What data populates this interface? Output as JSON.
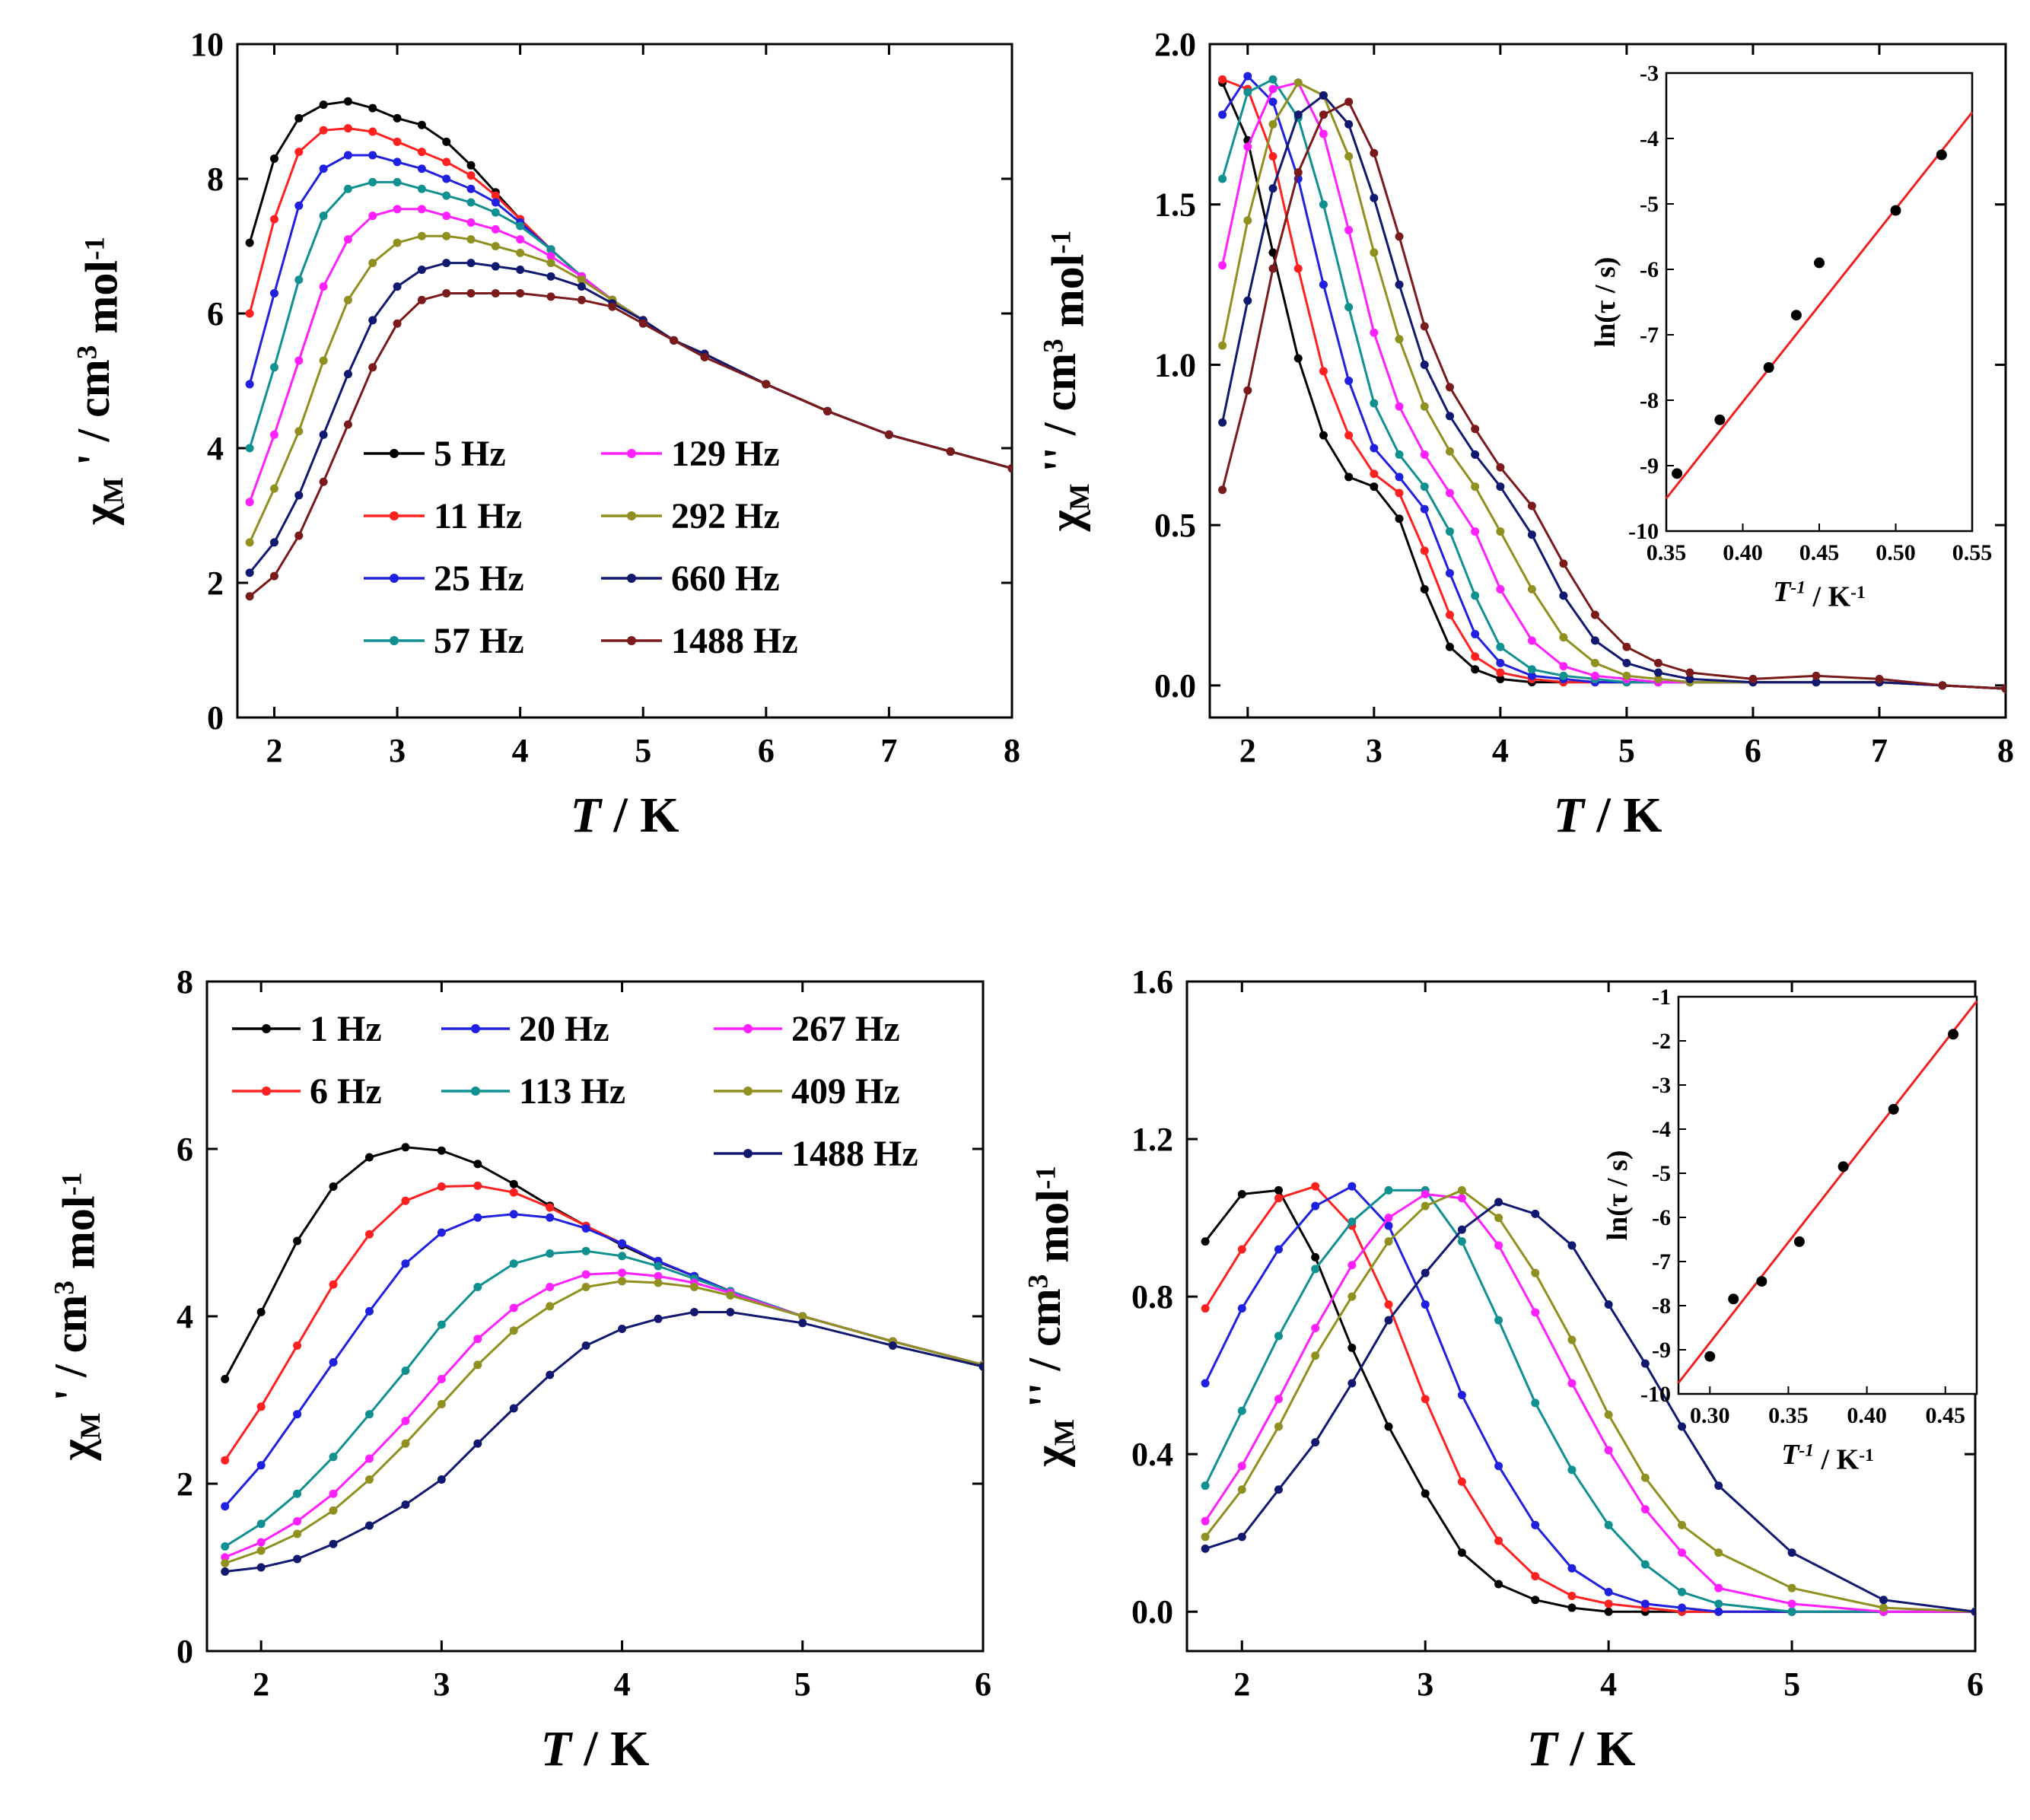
{
  "chart_data": [
    {
      "id": "a",
      "type": "line",
      "xlabel": "T / K",
      "ylabel": "χM' / cm3 mol-1",
      "xlim": [
        1.7,
        8
      ],
      "ylim": [
        0,
        10
      ],
      "xticks": [
        2,
        3,
        4,
        5,
        6,
        7,
        8
      ],
      "yticks": [
        0,
        2,
        4,
        6,
        8,
        10
      ],
      "legend_location": "center",
      "x": [
        1.8,
        2.0,
        2.2,
        2.4,
        2.6,
        2.8,
        3.0,
        3.2,
        3.4,
        3.6,
        3.8,
        4.0,
        4.25,
        4.5,
        4.75,
        5.0,
        5.25,
        5.5,
        6.0,
        6.5,
        7.0,
        7.5,
        8.0
      ],
      "series": [
        {
          "name": "5 Hz",
          "color": "#000000",
          "values": [
            7.05,
            8.3,
            8.9,
            9.1,
            9.15,
            9.05,
            8.9,
            8.8,
            8.55,
            8.2,
            7.8,
            7.4,
            6.95,
            6.55,
            6.2,
            5.9,
            5.6,
            5.4,
            4.95,
            4.55,
            4.2,
            3.95,
            3.7
          ]
        },
        {
          "name": "11 Hz",
          "color": "#ff2020",
          "values": [
            6.0,
            7.4,
            8.4,
            8.72,
            8.75,
            8.7,
            8.55,
            8.4,
            8.25,
            8.05,
            7.75,
            7.4,
            6.95,
            6.55,
            6.2,
            5.9,
            5.6,
            5.4,
            4.95,
            4.55,
            4.2,
            3.95,
            3.7
          ]
        },
        {
          "name": "25 Hz",
          "color": "#2020e0",
          "values": [
            4.95,
            6.3,
            7.6,
            8.15,
            8.35,
            8.35,
            8.25,
            8.15,
            8.0,
            7.85,
            7.65,
            7.35,
            6.95,
            6.55,
            6.2,
            5.9,
            5.6,
            5.4,
            4.95,
            4.55,
            4.2,
            3.95,
            3.7
          ]
        },
        {
          "name": "57 Hz",
          "color": "#109090",
          "values": [
            4.0,
            5.2,
            6.5,
            7.45,
            7.85,
            7.95,
            7.95,
            7.85,
            7.75,
            7.65,
            7.5,
            7.3,
            6.95,
            6.55,
            6.2,
            5.9,
            5.6,
            5.4,
            4.95,
            4.55,
            4.2,
            3.95,
            3.7
          ]
        },
        {
          "name": "129 Hz",
          "color": "#ff20ff",
          "values": [
            3.2,
            4.2,
            5.3,
            6.4,
            7.1,
            7.45,
            7.55,
            7.55,
            7.45,
            7.35,
            7.25,
            7.1,
            6.85,
            6.55,
            6.2,
            5.9,
            5.6,
            5.4,
            4.95,
            4.55,
            4.2,
            3.95,
            3.7
          ]
        },
        {
          "name": "292 Hz",
          "color": "#909020",
          "values": [
            2.6,
            3.4,
            4.25,
            5.3,
            6.2,
            6.75,
            7.05,
            7.15,
            7.15,
            7.1,
            7.0,
            6.9,
            6.75,
            6.5,
            6.2,
            5.9,
            5.6,
            5.4,
            4.95,
            4.55,
            4.2,
            3.95,
            3.7
          ]
        },
        {
          "name": "660 Hz",
          "color": "#101870",
          "values": [
            2.15,
            2.6,
            3.3,
            4.2,
            5.1,
            5.9,
            6.4,
            6.65,
            6.75,
            6.75,
            6.7,
            6.65,
            6.55,
            6.4,
            6.15,
            5.9,
            5.6,
            5.4,
            4.95,
            4.55,
            4.2,
            3.95,
            3.7
          ]
        },
        {
          "name": "1488 Hz",
          "color": "#7a1a1a",
          "values": [
            1.8,
            2.1,
            2.7,
            3.5,
            4.35,
            5.2,
            5.85,
            6.2,
            6.3,
            6.3,
            6.3,
            6.3,
            6.25,
            6.2,
            6.1,
            5.85,
            5.6,
            5.35,
            4.95,
            4.55,
            4.2,
            3.95,
            3.7
          ]
        }
      ]
    },
    {
      "id": "b",
      "type": "line",
      "xlabel": "T / K",
      "ylabel": "χM'' / cm3 mol-1",
      "xlim": [
        1.7,
        8
      ],
      "ylim": [
        -0.1,
        2.0
      ],
      "xticks": [
        2,
        3,
        4,
        5,
        6,
        7,
        8
      ],
      "yticks": [
        0.0,
        0.5,
        1.0,
        1.5,
        2.0
      ],
      "x": [
        1.8,
        2.0,
        2.2,
        2.4,
        2.6,
        2.8,
        3.0,
        3.2,
        3.4,
        3.6,
        3.8,
        4.0,
        4.25,
        4.5,
        4.75,
        5.0,
        5.25,
        5.5,
        6.0,
        6.5,
        7.0,
        7.5,
        8.0
      ],
      "series": [
        {
          "name": "5 Hz",
          "color": "#000000",
          "values": [
            1.88,
            1.7,
            1.35,
            1.02,
            0.78,
            0.65,
            0.62,
            0.52,
            0.3,
            0.12,
            0.05,
            0.02,
            0.01,
            0.01,
            0.01,
            0.01,
            0.01,
            0.01,
            0.01,
            0.01,
            0.01,
            0.0,
            -0.01
          ]
        },
        {
          "name": "11 Hz",
          "color": "#ff2020",
          "values": [
            1.89,
            1.86,
            1.65,
            1.3,
            0.98,
            0.78,
            0.66,
            0.6,
            0.42,
            0.22,
            0.09,
            0.04,
            0.02,
            0.01,
            0.01,
            0.01,
            0.01,
            0.01,
            0.01,
            0.01,
            0.01,
            0.0,
            -0.01
          ]
        },
        {
          "name": "25 Hz",
          "color": "#2020e0",
          "values": [
            1.78,
            1.9,
            1.82,
            1.58,
            1.25,
            0.95,
            0.74,
            0.65,
            0.55,
            0.35,
            0.16,
            0.07,
            0.03,
            0.02,
            0.01,
            0.01,
            0.01,
            0.01,
            0.01,
            0.01,
            0.01,
            0.0,
            -0.01
          ]
        },
        {
          "name": "57 Hz",
          "color": "#109090",
          "values": [
            1.58,
            1.85,
            1.89,
            1.77,
            1.5,
            1.18,
            0.88,
            0.72,
            0.62,
            0.48,
            0.28,
            0.12,
            0.05,
            0.03,
            0.02,
            0.01,
            0.01,
            0.01,
            0.01,
            0.01,
            0.01,
            0.0,
            -0.01
          ]
        },
        {
          "name": "129 Hz",
          "color": "#ff20ff",
          "values": [
            1.31,
            1.68,
            1.86,
            1.88,
            1.72,
            1.42,
            1.1,
            0.87,
            0.72,
            0.6,
            0.48,
            0.3,
            0.14,
            0.06,
            0.03,
            0.02,
            0.01,
            0.01,
            0.01,
            0.01,
            0.01,
            0.0,
            -0.01
          ]
        },
        {
          "name": "292 Hz",
          "color": "#909020",
          "values": [
            1.06,
            1.45,
            1.75,
            1.88,
            1.84,
            1.65,
            1.35,
            1.08,
            0.87,
            0.73,
            0.62,
            0.48,
            0.3,
            0.15,
            0.07,
            0.03,
            0.02,
            0.01,
            0.01,
            0.01,
            0.01,
            0.0,
            -0.01
          ]
        },
        {
          "name": "660 Hz",
          "color": "#101870",
          "values": [
            0.82,
            1.2,
            1.55,
            1.78,
            1.84,
            1.75,
            1.52,
            1.25,
            1.0,
            0.84,
            0.72,
            0.62,
            0.47,
            0.28,
            0.14,
            0.07,
            0.04,
            0.02,
            0.01,
            0.01,
            0.01,
            0.0,
            -0.01
          ]
        },
        {
          "name": "1488 Hz",
          "color": "#7a1a1a",
          "values": [
            0.61,
            0.92,
            1.3,
            1.6,
            1.78,
            1.82,
            1.66,
            1.4,
            1.12,
            0.93,
            0.8,
            0.68,
            0.56,
            0.38,
            0.22,
            0.12,
            0.07,
            0.04,
            0.02,
            0.03,
            0.02,
            0.0,
            -0.01
          ]
        }
      ],
      "inset": {
        "type": "scatter",
        "xlabel": "T-1 / K-1",
        "ylabel": "ln(τ / s)",
        "xlim": [
          0.35,
          0.55
        ],
        "ylim": [
          -10,
          -3
        ],
        "xticks": [
          0.35,
          0.4,
          0.45,
          0.5,
          0.55
        ],
        "yticks": [
          -10,
          -9,
          -8,
          -7,
          -6,
          -5,
          -4,
          -3
        ],
        "points": [
          [
            0.357,
            -9.12
          ],
          [
            0.385,
            -8.3
          ],
          [
            0.417,
            -7.5
          ],
          [
            0.435,
            -6.7
          ],
          [
            0.45,
            -5.9
          ],
          [
            0.5,
            -5.1
          ],
          [
            0.53,
            -4.25
          ]
        ],
        "fit_line": [
          [
            0.35,
            -9.5
          ],
          [
            0.55,
            -3.6
          ]
        ],
        "fit_color": "#ee2020"
      }
    },
    {
      "id": "c",
      "type": "line",
      "xlabel": "T / K",
      "ylabel": "χM' / cm3 mol-1",
      "xlim": [
        1.7,
        6
      ],
      "ylim": [
        0,
        8
      ],
      "xticks": [
        2,
        3,
        4,
        5,
        6
      ],
      "yticks": [
        0,
        2,
        4,
        6,
        8
      ],
      "legend_location": "top",
      "x": [
        1.8,
        2.0,
        2.2,
        2.4,
        2.6,
        2.8,
        3.0,
        3.2,
        3.4,
        3.6,
        3.8,
        4.0,
        4.2,
        4.4,
        4.6,
        5.0,
        5.5,
        6.0
      ],
      "series": [
        {
          "name": "1 Hz",
          "color": "#000000",
          "values": [
            3.25,
            4.05,
            4.9,
            5.55,
            5.9,
            6.02,
            5.98,
            5.82,
            5.58,
            5.32,
            5.08,
            4.85,
            4.65,
            4.48,
            4.3,
            4.0,
            3.7,
            3.42
          ]
        },
        {
          "name": "6 Hz",
          "color": "#ff2020",
          "values": [
            2.28,
            2.92,
            3.65,
            4.38,
            4.98,
            5.38,
            5.55,
            5.56,
            5.48,
            5.3,
            5.08,
            4.87,
            4.66,
            4.48,
            4.3,
            4.0,
            3.7,
            3.42
          ]
        },
        {
          "name": "20 Hz",
          "color": "#2020e0",
          "values": [
            1.73,
            2.22,
            2.83,
            3.45,
            4.06,
            4.63,
            5.0,
            5.18,
            5.22,
            5.18,
            5.05,
            4.87,
            4.66,
            4.48,
            4.3,
            4.0,
            3.7,
            3.42
          ]
        },
        {
          "name": "113 Hz",
          "color": "#109090",
          "values": [
            1.25,
            1.52,
            1.88,
            2.32,
            2.83,
            3.35,
            3.9,
            4.35,
            4.63,
            4.75,
            4.78,
            4.72,
            4.6,
            4.45,
            4.3,
            4.0,
            3.7,
            3.42
          ]
        },
        {
          "name": "267 Hz",
          "color": "#ff20ff",
          "values": [
            1.12,
            1.3,
            1.55,
            1.88,
            2.3,
            2.75,
            3.25,
            3.73,
            4.1,
            4.35,
            4.5,
            4.52,
            4.48,
            4.4,
            4.28,
            4.0,
            3.7,
            3.42
          ]
        },
        {
          "name": "409 Hz",
          "color": "#909020",
          "values": [
            1.05,
            1.2,
            1.4,
            1.68,
            2.05,
            2.48,
            2.95,
            3.42,
            3.83,
            4.12,
            4.35,
            4.42,
            4.4,
            4.35,
            4.25,
            4.0,
            3.7,
            3.42
          ]
        },
        {
          "name": "1488 Hz",
          "color": "#101870",
          "values": [
            0.95,
            1.0,
            1.1,
            1.28,
            1.5,
            1.75,
            2.05,
            2.48,
            2.9,
            3.3,
            3.65,
            3.85,
            3.97,
            4.05,
            4.05,
            3.92,
            3.65,
            3.4
          ]
        }
      ]
    },
    {
      "id": "d",
      "type": "line",
      "xlabel": "T / K",
      "ylabel": "χM'' / cm3 mol-1",
      "xlim": [
        1.7,
        6
      ],
      "ylim": [
        -0.1,
        1.6
      ],
      "xticks": [
        2,
        3,
        4,
        5,
        6
      ],
      "yticks": [
        0.0,
        0.4,
        0.8,
        1.2,
        1.6
      ],
      "x": [
        1.8,
        2.0,
        2.2,
        2.4,
        2.6,
        2.8,
        3.0,
        3.2,
        3.4,
        3.6,
        3.8,
        4.0,
        4.2,
        4.4,
        4.6,
        5.0,
        5.5,
        6.0
      ],
      "series": [
        {
          "name": "1 Hz",
          "color": "#000000",
          "values": [
            0.94,
            1.06,
            1.07,
            0.9,
            0.67,
            0.47,
            0.3,
            0.15,
            0.07,
            0.03,
            0.01,
            0.0,
            0.0,
            0.0,
            0.0,
            0.0,
            0.0,
            0.0
          ]
        },
        {
          "name": "6 Hz",
          "color": "#ff2020",
          "values": [
            0.77,
            0.92,
            1.05,
            1.08,
            0.98,
            0.78,
            0.54,
            0.33,
            0.18,
            0.09,
            0.04,
            0.02,
            0.01,
            0.0,
            0.0,
            0.0,
            0.0,
            0.0
          ]
        },
        {
          "name": "20 Hz",
          "color": "#2020e0",
          "values": [
            0.58,
            0.77,
            0.92,
            1.03,
            1.08,
            0.98,
            0.78,
            0.55,
            0.37,
            0.22,
            0.11,
            0.05,
            0.02,
            0.01,
            0.0,
            0.0,
            0.0,
            0.0
          ]
        },
        {
          "name": "113 Hz",
          "color": "#109090",
          "values": [
            0.32,
            0.51,
            0.7,
            0.87,
            0.99,
            1.07,
            1.07,
            0.94,
            0.74,
            0.53,
            0.36,
            0.22,
            0.12,
            0.05,
            0.02,
            0.0,
            0.0,
            0.0
          ]
        },
        {
          "name": "267 Hz",
          "color": "#ff20ff",
          "values": [
            0.23,
            0.37,
            0.54,
            0.72,
            0.88,
            1.0,
            1.06,
            1.05,
            0.93,
            0.76,
            0.58,
            0.41,
            0.26,
            0.15,
            0.06,
            0.02,
            0.0,
            0.0
          ]
        },
        {
          "name": "409 Hz",
          "color": "#909020",
          "values": [
            0.19,
            0.31,
            0.47,
            0.65,
            0.8,
            0.94,
            1.03,
            1.07,
            1.0,
            0.86,
            0.69,
            0.5,
            0.34,
            0.22,
            0.15,
            0.06,
            0.01,
            0.0
          ]
        },
        {
          "name": "1488 Hz",
          "color": "#101870",
          "values": [
            0.16,
            0.19,
            0.31,
            0.43,
            0.58,
            0.74,
            0.86,
            0.97,
            1.04,
            1.01,
            0.93,
            0.78,
            0.63,
            0.47,
            0.32,
            0.15,
            0.03,
            0.0
          ]
        }
      ],
      "inset": {
        "type": "scatter",
        "xlabel": "T-1 / K-1",
        "ylabel": "ln(τ / s)",
        "xlim": [
          0.28,
          0.47
        ],
        "ylim": [
          -10,
          -1
        ],
        "xticks": [
          0.3,
          0.35,
          0.4,
          0.45
        ],
        "yticks": [
          -10,
          -9,
          -8,
          -7,
          -6,
          -5,
          -4,
          -3,
          -2,
          -1
        ],
        "points": [
          [
            0.3,
            -9.15
          ],
          [
            0.315,
            -7.85
          ],
          [
            0.333,
            -7.45
          ],
          [
            0.357,
            -6.55
          ],
          [
            0.385,
            -4.85
          ],
          [
            0.417,
            -3.55
          ],
          [
            0.455,
            -1.85
          ]
        ],
        "fit_line": [
          [
            0.28,
            -9.75
          ],
          [
            0.47,
            -1.1
          ]
        ],
        "fit_color": "#ee2020"
      }
    }
  ]
}
